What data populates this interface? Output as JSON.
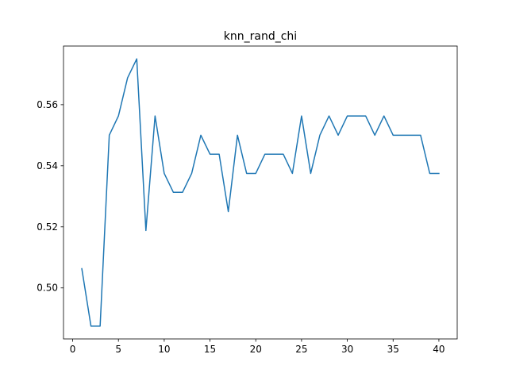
{
  "chart_data": {
    "type": "line",
    "title": "knn_rand_chi",
    "xlabel": "",
    "ylabel": "",
    "xlim": [
      -1.0,
      42.0
    ],
    "ylim": [
      0.4833,
      0.5792
    ],
    "x_ticks": [
      0,
      5,
      10,
      15,
      20,
      25,
      30,
      35,
      40
    ],
    "x_tick_labels": [
      "0",
      "5",
      "10",
      "15",
      "20",
      "25",
      "30",
      "35",
      "40"
    ],
    "y_ticks": [
      0.5,
      0.52,
      0.54,
      0.56
    ],
    "y_tick_labels": [
      "0.50",
      "0.52",
      "0.54",
      "0.56"
    ],
    "grid": false,
    "legend": "none",
    "series": [
      {
        "color": "#1f77b4",
        "x": [
          1,
          2,
          3,
          4,
          5,
          6,
          7,
          8,
          9,
          10,
          11,
          12,
          13,
          14,
          15,
          16,
          17,
          18,
          19,
          20,
          21,
          22,
          23,
          24,
          25,
          26,
          27,
          28,
          29,
          30,
          31,
          32,
          33,
          34,
          35,
          36,
          37,
          38,
          39,
          40
        ],
        "y": [
          0.5063,
          0.4875,
          0.4875,
          0.55,
          0.5563,
          0.5688,
          0.575,
          0.5188,
          0.5563,
          0.5375,
          0.5313,
          0.5313,
          0.5375,
          0.55,
          0.5438,
          0.5438,
          0.525,
          0.55,
          0.5375,
          0.5375,
          0.5438,
          0.5438,
          0.5438,
          0.5375,
          0.5563,
          0.5375,
          0.55,
          0.5563,
          0.55,
          0.5563,
          0.5563,
          0.5563,
          0.55,
          0.5563,
          0.55,
          0.55,
          0.55,
          0.55,
          0.5375,
          0.5375
        ]
      }
    ]
  }
}
